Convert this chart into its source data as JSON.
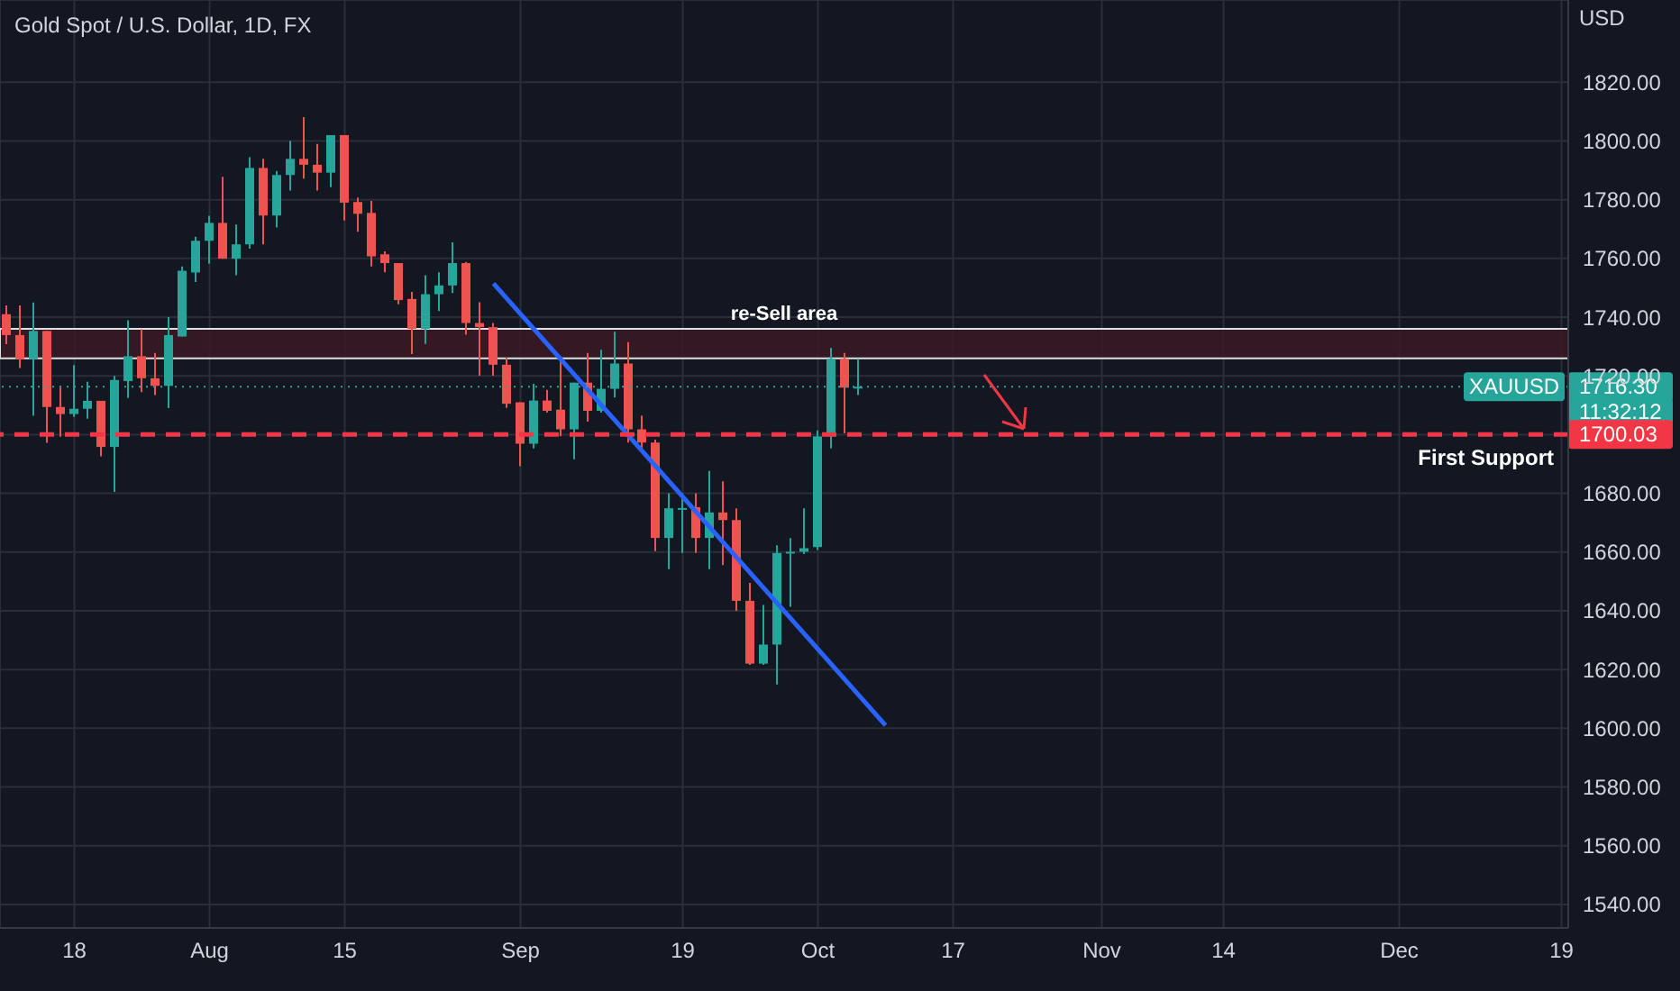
{
  "chart_data": {
    "type": "candlestick",
    "title": "Gold Spot / U.S. Dollar, 1D, FX",
    "ylabel": "USD",
    "categories": [
      null,
      null,
      null,
      null,
      null,
      "18",
      null,
      null,
      null,
      null,
      null,
      null,
      null,
      null,
      null,
      "Aug",
      null,
      null,
      null,
      null,
      null,
      null,
      null,
      null,
      null,
      "15",
      null,
      null,
      null,
      null,
      null,
      null,
      null,
      null,
      null,
      null,
      null,
      null,
      "Sep",
      null,
      null,
      null,
      null,
      null,
      null,
      null,
      null,
      null,
      null,
      null,
      "19",
      null,
      null,
      null,
      null,
      null,
      null,
      null,
      null,
      null,
      "Oct",
      null,
      null,
      null,
      null,
      null,
      null,
      null,
      null,
      null,
      "17",
      null,
      null,
      null,
      null,
      null,
      null,
      null,
      null,
      null,
      null,
      "Nov",
      null,
      null,
      null,
      null,
      null,
      null,
      null,
      null,
      "14",
      null,
      null,
      null,
      null,
      null,
      null,
      null,
      null,
      null,
      null,
      null,
      null,
      "Dec",
      null,
      null,
      null,
      null,
      null,
      null,
      null,
      null,
      null,
      null,
      null,
      "19"
    ],
    "ohlc": [
      [
        1741,
        1744,
        1730.8,
        1733.9
      ],
      [
        1733.9,
        1744,
        1722.7,
        1725.7
      ],
      [
        1725.7,
        1745,
        1706.4,
        1735.3
      ],
      [
        1735.3,
        1735.3,
        1697.2,
        1709.4
      ],
      [
        1709.4,
        1716.6,
        1699.3,
        1707
      ],
      [
        1707,
        1723.7,
        1706,
        1708.8
      ],
      [
        1708.8,
        1718,
        1705.4,
        1711.5
      ],
      [
        1711.5,
        1711.5,
        1692.6,
        1695.8
      ],
      [
        1695.8,
        1720,
        1680.5,
        1718.6
      ],
      [
        1718.2,
        1738.9,
        1712.5,
        1726.7
      ],
      [
        1726.7,
        1735.9,
        1714.5,
        1719.2
      ],
      [
        1719.2,
        1727.8,
        1713.5,
        1716.6
      ],
      [
        1716.6,
        1740,
        1709,
        1733.9
      ],
      [
        1733.4,
        1757.3,
        1733.4,
        1755.8
      ],
      [
        1755.2,
        1767.4,
        1752,
        1766
      ],
      [
        1766,
        1774.5,
        1758.2,
        1772.1
      ],
      [
        1772.1,
        1787.8,
        1759.9,
        1759.9
      ],
      [
        1759.9,
        1771.5,
        1754.3,
        1764.8
      ],
      [
        1764.8,
        1794.5,
        1763.3,
        1790.8
      ],
      [
        1790.8,
        1793.9,
        1764.8,
        1774.6
      ],
      [
        1774.6,
        1789.8,
        1770.5,
        1788.4
      ],
      [
        1788.4,
        1800,
        1783.1,
        1793.9
      ],
      [
        1793.9,
        1808.1,
        1787.2,
        1791.9
      ],
      [
        1791.9,
        1799,
        1783.1,
        1789.2
      ],
      [
        1789.2,
        1802,
        1784.3,
        1802
      ],
      [
        1802,
        1802,
        1772.9,
        1779
      ],
      [
        1779.2,
        1780.7,
        1769.1,
        1775.2
      ],
      [
        1775.5,
        1779.6,
        1757.3,
        1760.7
      ],
      [
        1761.4,
        1762.4,
        1755.3,
        1758.4
      ],
      [
        1758.4,
        1758.4,
        1744.4,
        1745.8
      ],
      [
        1746.2,
        1748.6,
        1727.4,
        1736
      ],
      [
        1736,
        1754.3,
        1730.9,
        1747.8
      ],
      [
        1747.8,
        1755.3,
        1742.1,
        1750.8
      ],
      [
        1750.8,
        1765.5,
        1748.2,
        1758.4
      ],
      [
        1758.4,
        1758.8,
        1734,
        1738
      ],
      [
        1738,
        1745.1,
        1720.1,
        1736.6
      ],
      [
        1736.6,
        1738,
        1720.1,
        1723.8
      ],
      [
        1723.8,
        1726.2,
        1709.1,
        1710.5
      ],
      [
        1711,
        1711,
        1689.2,
        1696.9
      ],
      [
        1696.9,
        1717.3,
        1695.3,
        1711.6
      ],
      [
        1711.6,
        1715.2,
        1707.5,
        1708.1
      ],
      [
        1708.5,
        1726.4,
        1699.4,
        1701.8
      ],
      [
        1701.8,
        1717.7,
        1691.6,
        1717.7
      ],
      [
        1717.7,
        1727.8,
        1704.4,
        1708.1
      ],
      [
        1708.1,
        1728.9,
        1707.5,
        1715.6
      ],
      [
        1715.6,
        1735,
        1712.6,
        1724.2
      ],
      [
        1724.2,
        1731.5,
        1697.3,
        1701.8
      ],
      [
        1701.8,
        1706.5,
        1693.7,
        1697.3
      ],
      [
        1697.3,
        1698.3,
        1660.3,
        1664.8
      ],
      [
        1664.8,
        1680,
        1654.2,
        1674.9
      ],
      [
        1674.5,
        1680,
        1659.7,
        1675
      ],
      [
        1675.3,
        1680,
        1659.7,
        1664.8
      ],
      [
        1664.8,
        1687.6,
        1654.2,
        1673.5
      ],
      [
        1673.5,
        1684.1,
        1655.6,
        1670.9
      ],
      [
        1670.9,
        1674.9,
        1640,
        1643.4
      ],
      [
        1643.4,
        1649.5,
        1621.6,
        1622
      ],
      [
        1622,
        1642,
        1621.6,
        1628.5
      ],
      [
        1628.5,
        1662.3,
        1614.9,
        1659.7
      ],
      [
        1659.7,
        1664.8,
        1641.4,
        1660.1
      ],
      [
        1660.1,
        1674.9,
        1659.3,
        1661.3
      ],
      [
        1661.7,
        1701.4,
        1660.7,
        1699.4
      ],
      [
        1699.4,
        1729.5,
        1695.3,
        1725.8
      ],
      [
        1725.8,
        1727.8,
        1700.4,
        1716
      ],
      [
        1715.8,
        1725.8,
        1713.5,
        1716.3
      ],
      null,
      null,
      null,
      null,
      null,
      null,
      null,
      null,
      null,
      null,
      null,
      null,
      null,
      null,
      null,
      null,
      null,
      null,
      null,
      null,
      null,
      null,
      null,
      null,
      null,
      null,
      null,
      null,
      null,
      null,
      null,
      null,
      null,
      null,
      null,
      null,
      null,
      null,
      null,
      null,
      null,
      null,
      null,
      null,
      null,
      null,
      null,
      null,
      null,
      null,
      null,
      null
    ],
    "series": [
      {
        "type": "line",
        "color": "#2962ff",
        "values": [
          null,
          null,
          null,
          null,
          null,
          null,
          null,
          null,
          null,
          null,
          null,
          null,
          null,
          null,
          null,
          null,
          null,
          null,
          null,
          null,
          null,
          null,
          null,
          null,
          null,
          null,
          null,
          null,
          null,
          null,
          null,
          null,
          null,
          null,
          null,
          null,
          1751.5,
          null,
          null,
          null,
          null,
          null,
          null,
          null,
          null,
          null,
          null,
          null,
          null,
          null,
          null,
          null,
          null,
          null,
          null,
          null,
          null,
          null,
          null,
          null,
          null,
          null,
          null,
          null,
          null,
          1601,
          null,
          null,
          null,
          null,
          null,
          null,
          null,
          null,
          null,
          null,
          null,
          null,
          null,
          null,
          null,
          null,
          null,
          null,
          null,
          null,
          null,
          null,
          null,
          null,
          null,
          null,
          null,
          null,
          null,
          null,
          null,
          null,
          null,
          null,
          null,
          null,
          null,
          null,
          null,
          null,
          null,
          null,
          null,
          null,
          null,
          null,
          null,
          null,
          null,
          null
        ]
      }
    ],
    "ylim": [
      1532,
      1848
    ],
    "yticks": [
      {
        "value": 1540,
        "label": "1540.00"
      },
      {
        "value": 1560,
        "label": "1560.00"
      },
      {
        "value": 1580,
        "label": "1580.00"
      },
      {
        "value": 1600,
        "label": "1600.00"
      },
      {
        "value": 1620,
        "label": "1620.00"
      },
      {
        "value": 1640,
        "label": "1640.00"
      },
      {
        "value": 1660,
        "label": "1660.00"
      },
      {
        "value": 1680,
        "label": "1680.00"
      },
      {
        "value": 1700,
        "label": null
      },
      {
        "value": 1720,
        "label": "1720.00"
      },
      {
        "value": 1740,
        "label": "1740.00"
      },
      {
        "value": 1760,
        "label": "1760.00"
      },
      {
        "value": 1780,
        "label": "1780.00"
      },
      {
        "value": 1800,
        "label": "1800.00"
      },
      {
        "value": 1820,
        "label": "1820.00"
      }
    ],
    "grid": true,
    "ref_lines": [
      {
        "axis": "y",
        "value": 1716.3,
        "label": "XAUUSD",
        "color": "#26a69a",
        "line_style": "dotted"
      },
      {
        "axis": "y",
        "value": 1700.03,
        "label": "First Support",
        "color": "#f23645",
        "line_style": "dashed"
      }
    ],
    "bands": [
      {
        "axis": "y",
        "from": 1726,
        "to": 1736,
        "label": "re-Sell area",
        "color": "#3b1a24"
      }
    ],
    "annotations": [
      "1716.30",
      "11:32:12",
      "1700.03"
    ]
  }
}
